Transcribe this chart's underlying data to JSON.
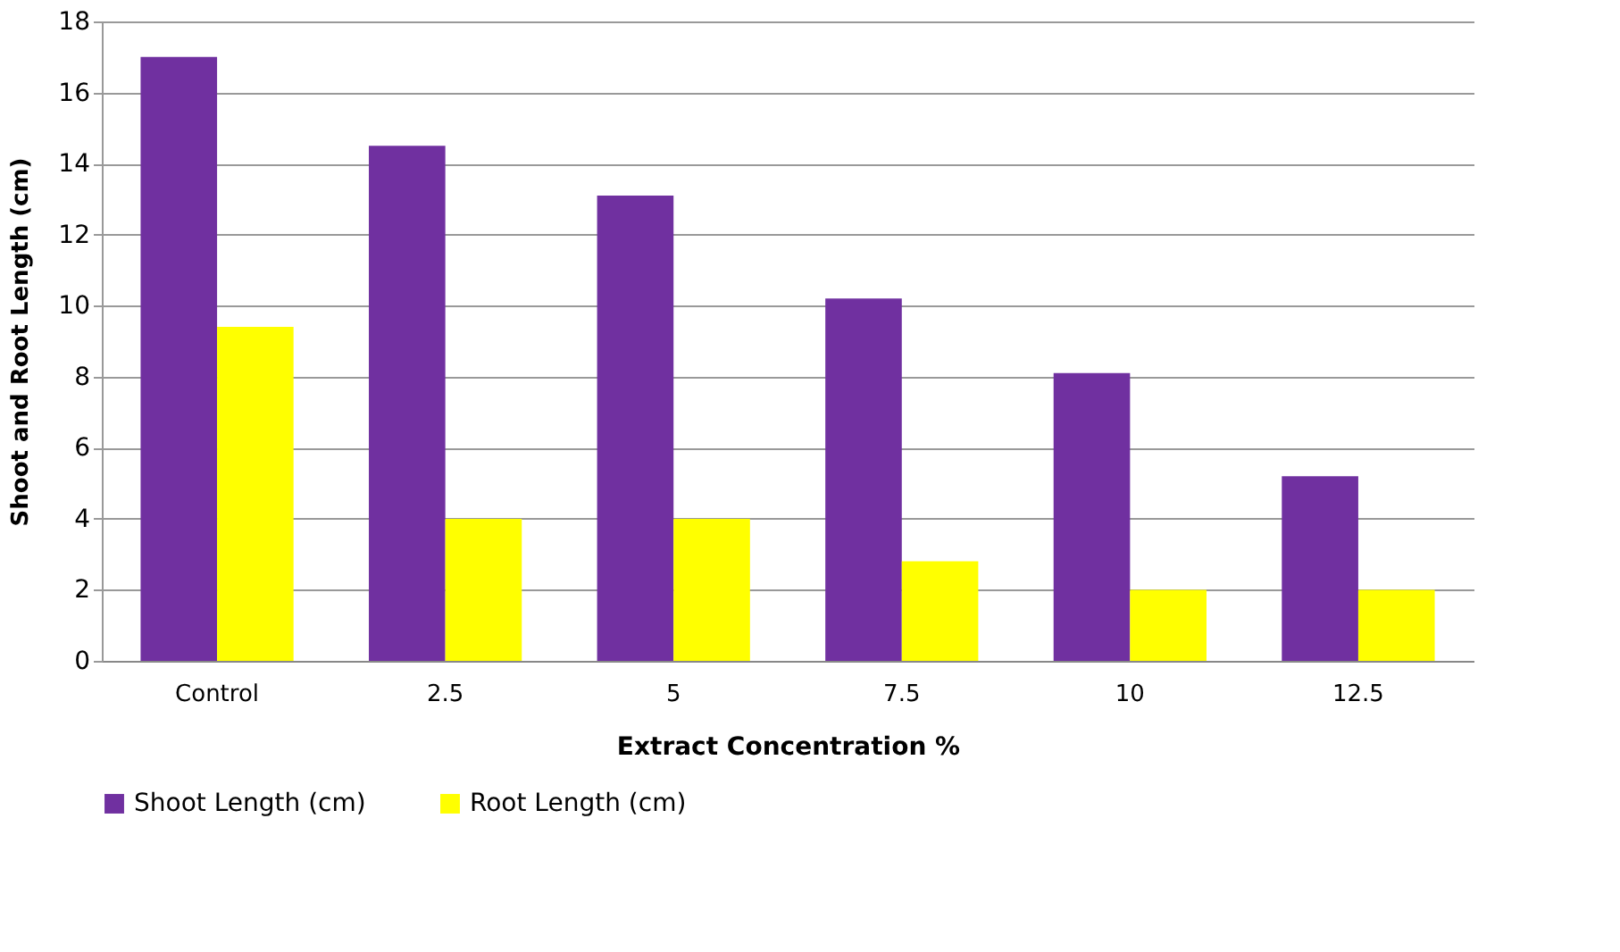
{
  "chart_data": {
    "type": "bar",
    "xlabel": "Extract Concentration %",
    "ylabel": "Shoot and Root Length (cm)",
    "categories": [
      "Control",
      "2.5",
      "5",
      "7.5",
      "10",
      "12.5"
    ],
    "series": [
      {
        "name": "Shoot Length (cm)",
        "color": "#7030a0",
        "values": [
          17,
          14.5,
          13.1,
          10.2,
          8.1,
          5.2
        ]
      },
      {
        "name": "Root Length (cm)",
        "color": "#ffff00",
        "values": [
          9.4,
          4.0,
          4.0,
          2.8,
          2.0,
          2.0
        ]
      }
    ],
    "ylim": [
      0,
      18
    ],
    "yticks": [
      0,
      2,
      4,
      6,
      8,
      10,
      12,
      14,
      16,
      18
    ],
    "grid": "y",
    "legend": "bottom"
  }
}
